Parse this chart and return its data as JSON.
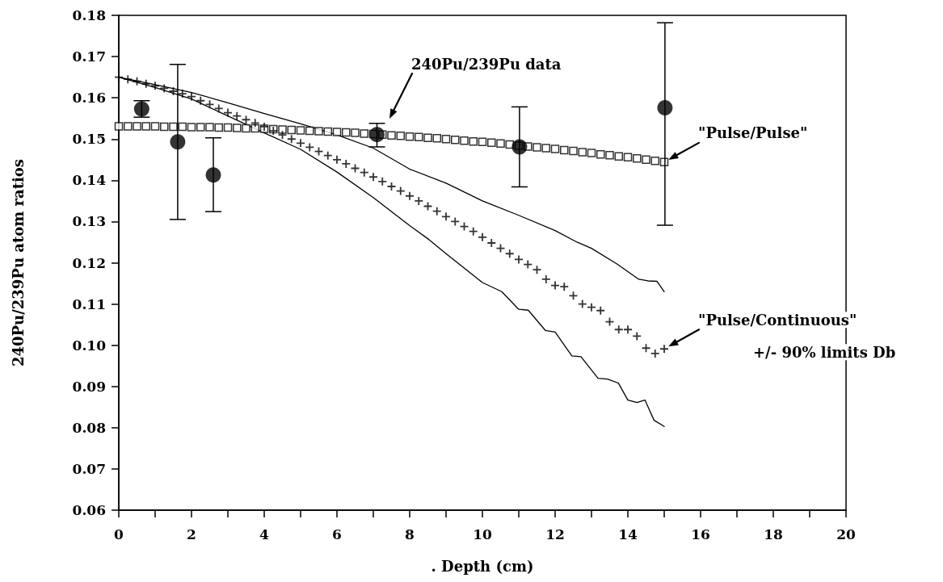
{
  "chart_data": {
    "type": "scatter",
    "xlabel": ". Depth (cm)",
    "ylabel": "240Pu/239Pu atom ratios",
    "grid": false,
    "xlim": [
      0,
      20
    ],
    "xticks": [
      0,
      {
        "value": 1,
        "label": null
      },
      2,
      {
        "value": 3,
        "label": null
      },
      4,
      {
        "value": 5,
        "label": null
      },
      6,
      {
        "value": 7,
        "label": null
      },
      8,
      {
        "value": 9,
        "label": null
      },
      10,
      {
        "value": 11,
        "label": null
      },
      12,
      {
        "value": 13,
        "label": null
      },
      14,
      {
        "value": 15,
        "label": null
      },
      16,
      {
        "value": 17,
        "label": null
      },
      18,
      {
        "value": 19,
        "label": null
      },
      20
    ],
    "ylim": [
      0.06,
      0.18
    ],
    "yticks": [
      0.06,
      0.07,
      0.08,
      0.09,
      {
        "value": 0.1,
        "label": "0.10"
      },
      0.11,
      0.12,
      0.13,
      0.14,
      0.15,
      0.16,
      0.17,
      0.18
    ],
    "series": [
      {
        "type": "line",
        "color": "#000000",
        "marker": "none",
        "line_style": "solid",
        "x": [
          0,
          1,
          2,
          3,
          4,
          5,
          6,
          7,
          8,
          9,
          10,
          11,
          12,
          12.6,
          13,
          13.7,
          14.3,
          14.55,
          14.8,
          15
        ],
        "values": [
          0.165,
          0.1632,
          0.1613,
          0.1588,
          0.1562,
          0.1537,
          0.151,
          0.1478,
          0.1427,
          0.1393,
          0.135,
          0.1315,
          0.1278,
          0.125,
          0.1235,
          0.1197,
          0.116,
          0.1156,
          0.1155,
          0.113
        ]
      },
      {
        "type": "line",
        "color": "#000000",
        "marker": "none",
        "line_style": "solid",
        "x": [
          0,
          1,
          2,
          3,
          4,
          5,
          6,
          7,
          8,
          8.52,
          9,
          10,
          10.53,
          11,
          11.26,
          11.73,
          12,
          12.46,
          12.71,
          13.18,
          13.44,
          13.74,
          14,
          14.25,
          14.47,
          14.72,
          15
        ],
        "values": [
          0.165,
          0.1625,
          0.1597,
          0.1556,
          0.1515,
          0.1475,
          0.142,
          0.1358,
          0.129,
          0.1257,
          0.1222,
          0.1152,
          0.113,
          0.1087,
          0.1085,
          0.1036,
          0.1032,
          0.0974,
          0.0972,
          0.092,
          0.0918,
          0.0908,
          0.0867,
          0.0861,
          0.0867,
          0.0818,
          0.0803
        ]
      },
      {
        "color": "#000000",
        "marker": "square",
        "x": [
          0,
          0.25,
          0.5,
          0.75,
          1,
          1.25,
          1.5,
          1.75,
          2,
          2.25,
          2.5,
          2.75,
          3,
          3.25,
          3.5,
          3.75,
          4,
          4.25,
          4.5,
          4.75,
          5,
          5.25,
          5.5,
          5.75,
          6,
          6.25,
          6.5,
          6.75,
          7,
          7.25,
          7.5,
          7.75,
          8,
          8.25,
          8.5,
          8.75,
          9,
          9.25,
          9.5,
          9.75,
          10,
          10.25,
          10.5,
          10.75,
          11,
          11.25,
          11.5,
          11.75,
          12,
          12.25,
          12.5,
          12.75,
          13,
          13.25,
          13.5,
          13.75,
          14,
          14.25,
          14.5,
          14.75,
          15
        ],
        "values": [
          0.1531,
          0.1531,
          0.1531,
          0.1531,
          0.1531,
          0.153,
          0.153,
          0.153,
          0.1529,
          0.1529,
          0.1529,
          0.1528,
          0.1528,
          0.1527,
          0.1526,
          0.1526,
          0.1525,
          0.1524,
          0.1523,
          0.1522,
          0.1521,
          0.152,
          0.1519,
          0.1518,
          0.1517,
          0.1516,
          0.1515,
          0.1513,
          0.1512,
          0.1511,
          0.1509,
          0.1508,
          0.1506,
          0.1505,
          0.1503,
          0.1502,
          0.15,
          0.1498,
          0.1496,
          0.1494,
          0.1493,
          0.1491,
          0.1489,
          0.1487,
          0.1484,
          0.1482,
          0.148,
          0.1478,
          0.1476,
          0.1473,
          0.1471,
          0.1468,
          0.1466,
          0.1463,
          0.1461,
          0.1458,
          0.1456,
          0.1453,
          0.145,
          0.1447,
          0.1444
        ]
      },
      {
        "color": "#000000",
        "marker": "cross",
        "x": [
          0,
          0.25,
          0.5,
          0.75,
          1,
          1.25,
          1.5,
          1.75,
          2,
          2.25,
          2.5,
          2.75,
          3,
          3.25,
          3.5,
          3.75,
          4,
          4.25,
          4.5,
          4.75,
          5,
          5.25,
          5.5,
          5.75,
          6,
          6.25,
          6.5,
          6.75,
          7,
          7.25,
          7.5,
          7.75,
          8,
          8.25,
          8.5,
          8.75,
          9,
          9.25,
          9.5,
          9.75,
          10,
          10.25,
          10.5,
          10.75,
          11,
          11.25,
          11.5,
          11.75,
          12,
          12.25,
          12.5,
          12.75,
          13,
          13.25,
          13.5,
          13.75,
          14,
          14.25,
          14.5,
          14.75,
          15
        ],
        "values": [
          0.165,
          0.1645,
          0.164,
          0.1634,
          0.1629,
          0.1623,
          0.1616,
          0.161,
          0.1603,
          0.1593,
          0.1584,
          0.1574,
          0.1564,
          0.1556,
          0.1547,
          0.1539,
          0.153,
          0.152,
          0.151,
          0.15,
          0.149,
          0.148,
          0.147,
          0.146,
          0.145,
          0.144,
          0.1429,
          0.1419,
          0.1408,
          0.1397,
          0.1385,
          0.1374,
          0.1362,
          0.135,
          0.1337,
          0.1325,
          0.1312,
          0.13,
          0.1288,
          0.1276,
          0.1262,
          0.1248,
          0.1235,
          0.1222,
          0.1208,
          0.1196,
          0.1183,
          0.116,
          0.1145,
          0.1142,
          0.112,
          0.11,
          0.1092,
          0.1084,
          0.1057,
          0.1038,
          0.1038,
          0.1022,
          0.0993,
          0.098,
          0.0991
        ]
      },
      {
        "color": "#000000",
        "marker": "circle",
        "x": [
          0.63,
          1.62,
          2.6,
          7.1,
          11.02,
          15.02
        ],
        "values": [
          0.1573,
          0.1493,
          0.1413,
          0.1511,
          0.1481,
          0.1576
        ],
        "errors": [
          [
            0.1553,
            0.1593
          ],
          [
            0.1305,
            0.1681
          ],
          [
            0.1324,
            0.1503
          ],
          [
            0.1481,
            0.1538
          ],
          [
            0.1384,
            0.1578
          ],
          [
            0.1291,
            0.1782
          ]
        ]
      }
    ],
    "annotations": [
      "240Pu/239Pu data",
      {
        "text": "\"Pulse/Pulse\"",
        "x": 15,
        "y": 0.1444
      },
      {
        "text": "\"Pulse/Continuous\"",
        "x": 15,
        "y": 0.0991
      },
      "+/- 90% limits Db"
    ]
  }
}
